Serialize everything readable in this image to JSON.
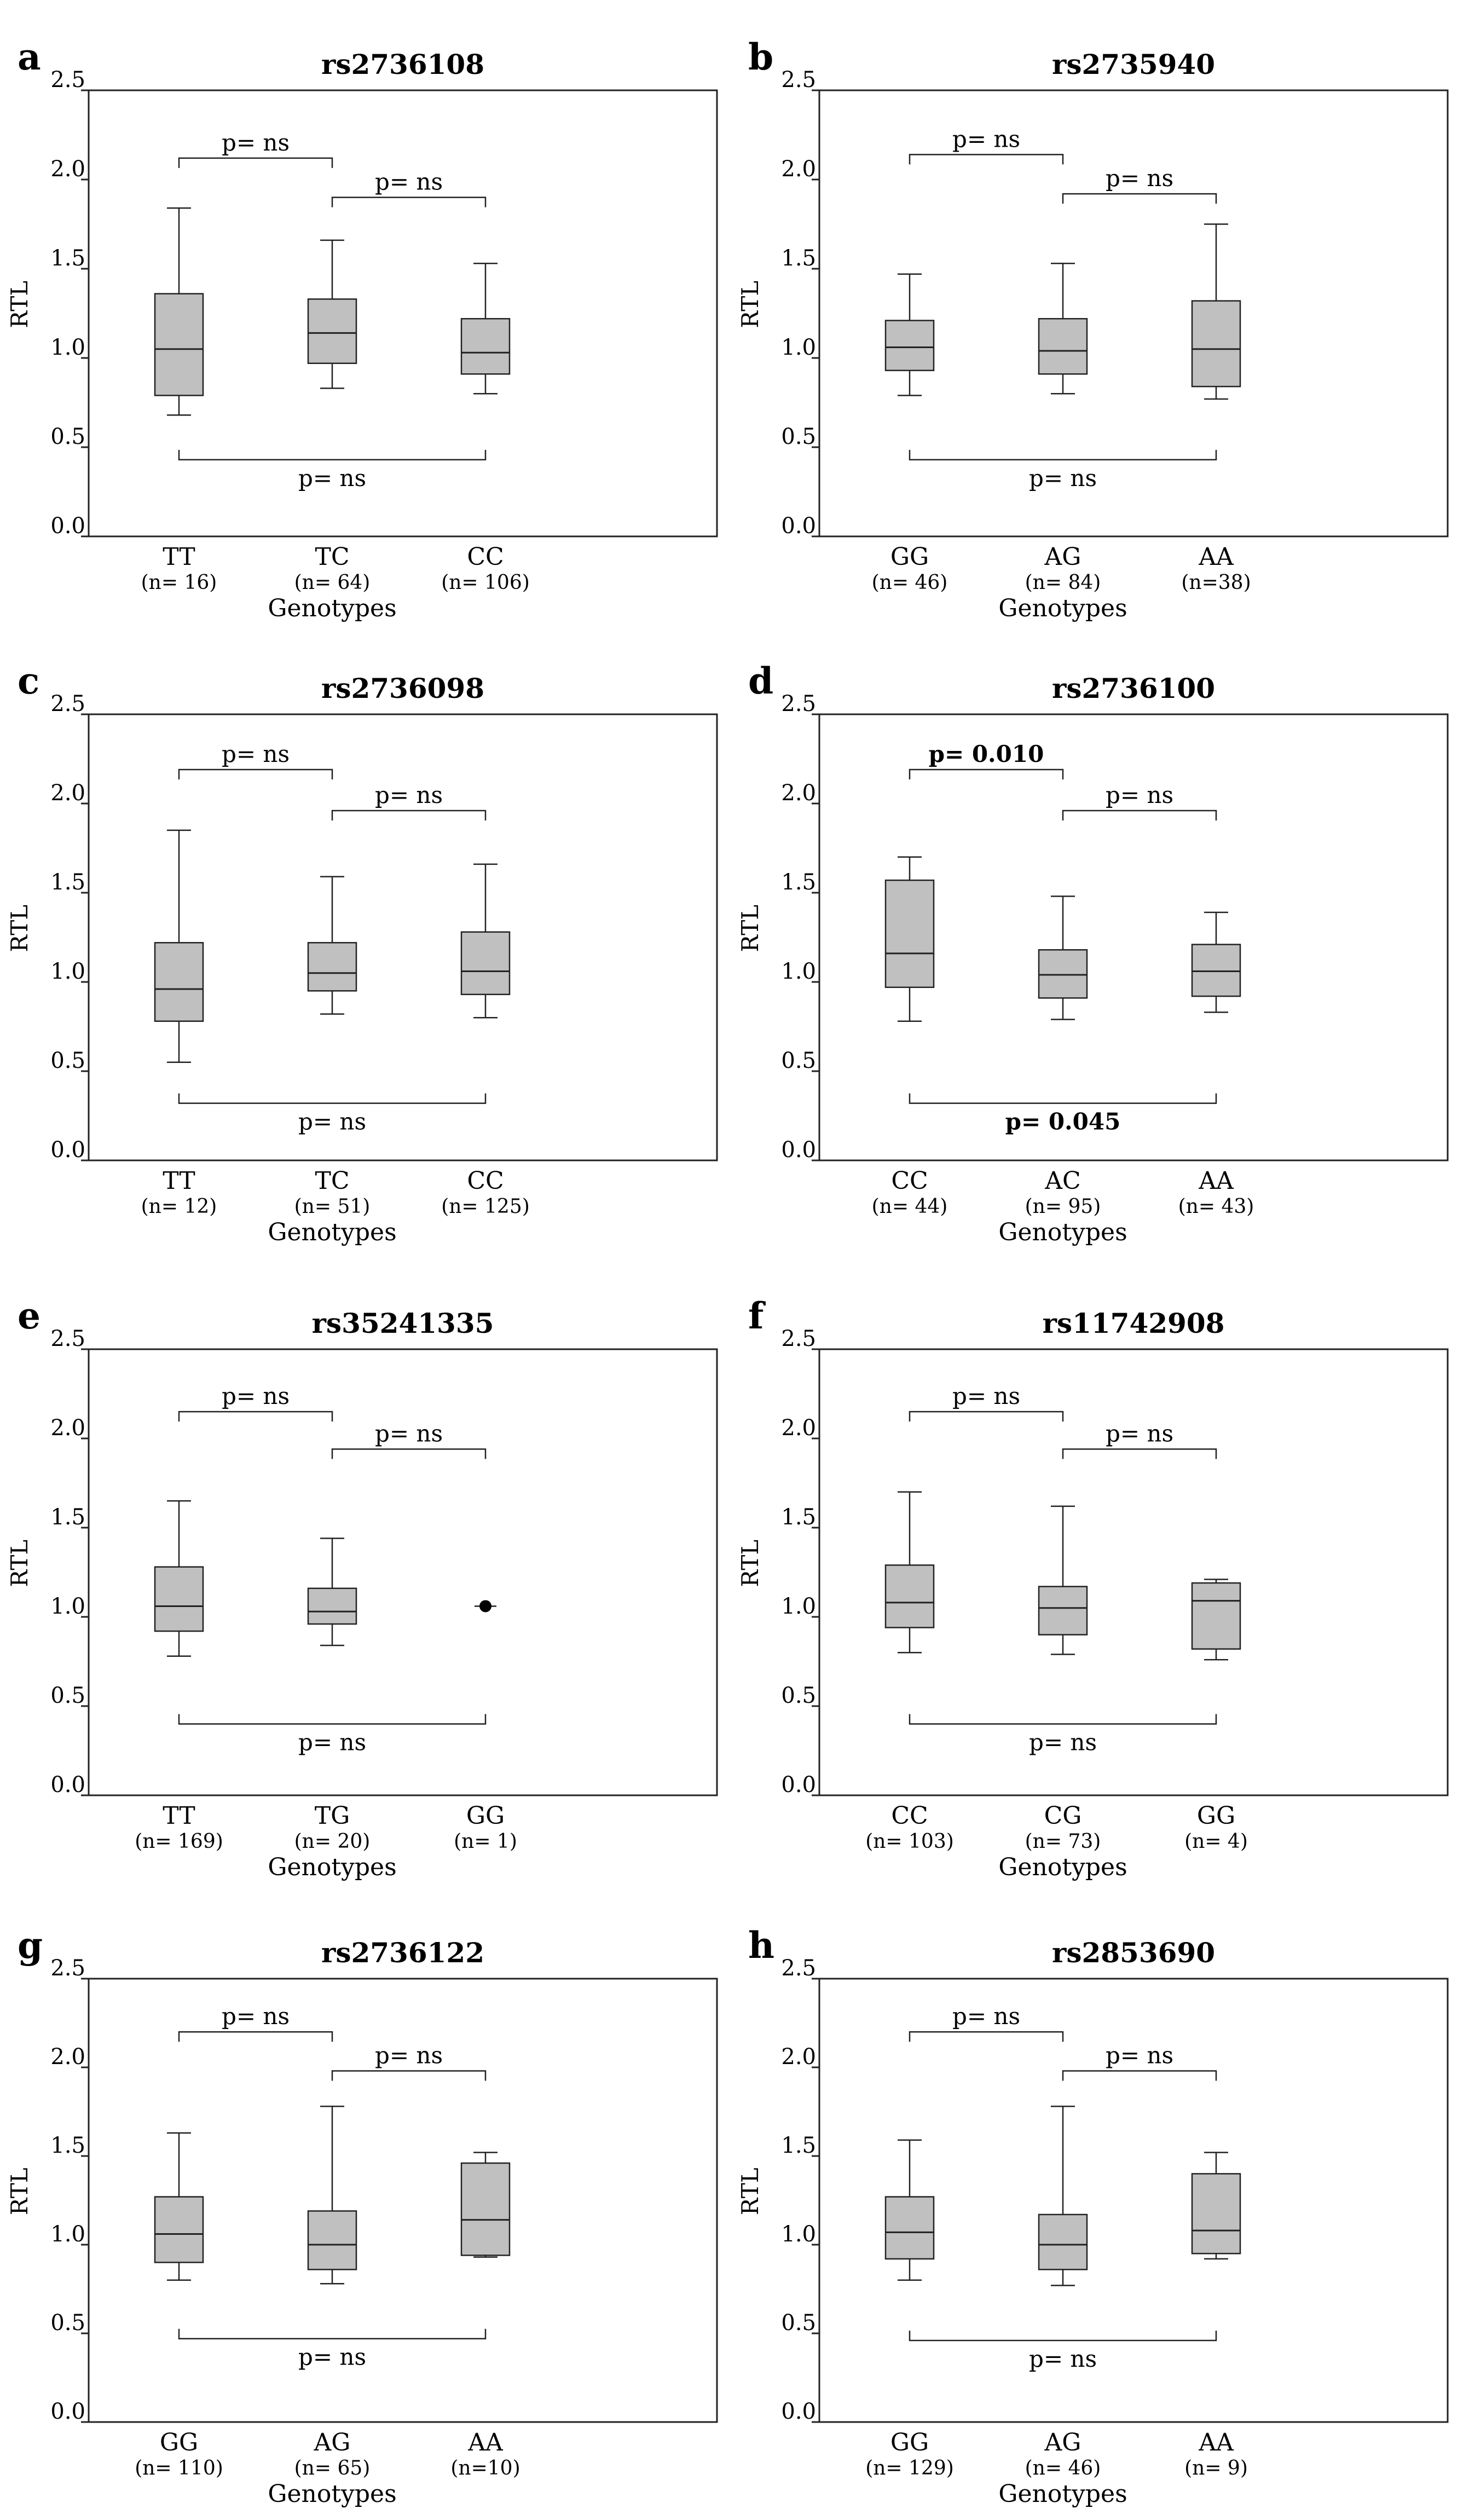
{
  "figure": {
    "y_label": "RTL",
    "x_label": "Genotypes",
    "axis_ticks": [
      "0.0",
      "0.5",
      "1.0",
      "1.5",
      "2.0",
      "2.5"
    ]
  },
  "chart_data": [
    {
      "type": "box",
      "panel_letter": "a",
      "title": "rs2736108",
      "xlabel": "Genotypes",
      "ylabel": "RTL",
      "ylim": [
        0,
        2.5
      ],
      "yticks": [
        0.0,
        0.5,
        1.0,
        1.5,
        2.0,
        2.5
      ],
      "categories": [
        "TT",
        "TC",
        "CC"
      ],
      "n_labels": [
        "(n= 16)",
        "(n= 64)",
        "(n= 106)"
      ],
      "boxes": [
        {
          "min": 0.68,
          "q1": 0.79,
          "median": 1.05,
          "q3": 1.36,
          "max": 1.84
        },
        {
          "min": 0.83,
          "q1": 0.97,
          "median": 1.14,
          "q3": 1.33,
          "max": 1.66
        },
        {
          "min": 0.8,
          "q1": 0.91,
          "median": 1.03,
          "q3": 1.22,
          "max": 1.53
        }
      ],
      "comparisons": [
        {
          "from": 0,
          "to": 1,
          "label": "p= ns",
          "bold": false,
          "level": 2.12,
          "label_pos": "above"
        },
        {
          "from": 1,
          "to": 2,
          "label": "p= ns",
          "bold": false,
          "level": 1.9,
          "label_pos": "above"
        },
        {
          "from": 0,
          "to": 2,
          "label": "p= ns",
          "bold": false,
          "level": 0.43,
          "label_pos": "below"
        }
      ]
    },
    {
      "type": "box",
      "panel_letter": "b",
      "title": "rs2735940",
      "xlabel": "Genotypes",
      "ylabel": "RTL",
      "ylim": [
        0,
        2.5
      ],
      "yticks": [
        0.0,
        0.5,
        1.0,
        1.5,
        2.0,
        2.5
      ],
      "categories": [
        "GG",
        "AG",
        "AA"
      ],
      "n_labels": [
        "(n= 46)",
        "(n= 84)",
        "(n=38)"
      ],
      "boxes": [
        {
          "min": 0.79,
          "q1": 0.93,
          "median": 1.06,
          "q3": 1.21,
          "max": 1.47
        },
        {
          "min": 0.8,
          "q1": 0.91,
          "median": 1.04,
          "q3": 1.22,
          "max": 1.53
        },
        {
          "min": 0.77,
          "q1": 0.84,
          "median": 1.05,
          "q3": 1.32,
          "max": 1.75
        }
      ],
      "comparisons": [
        {
          "from": 0,
          "to": 1,
          "label": "p= ns",
          "bold": false,
          "level": 2.14,
          "label_pos": "above"
        },
        {
          "from": 1,
          "to": 2,
          "label": "p= ns",
          "bold": false,
          "level": 1.92,
          "label_pos": "above"
        },
        {
          "from": 0,
          "to": 2,
          "label": "p= ns",
          "bold": false,
          "level": 0.43,
          "label_pos": "below"
        }
      ]
    },
    {
      "type": "box",
      "panel_letter": "c",
      "title": "rs2736098",
      "xlabel": "Genotypes",
      "ylabel": "RTL",
      "ylim": [
        0,
        2.5
      ],
      "yticks": [
        0.0,
        0.5,
        1.0,
        1.5,
        2.0,
        2.5
      ],
      "categories": [
        "TT",
        "TC",
        "CC"
      ],
      "n_labels": [
        "(n= 12)",
        "(n= 51)",
        "(n= 125)"
      ],
      "boxes": [
        {
          "min": 0.55,
          "q1": 0.78,
          "median": 0.96,
          "q3": 1.22,
          "max": 1.85
        },
        {
          "min": 0.82,
          "q1": 0.95,
          "median": 1.05,
          "q3": 1.22,
          "max": 1.59
        },
        {
          "min": 0.8,
          "q1": 0.93,
          "median": 1.06,
          "q3": 1.28,
          "max": 1.66
        }
      ],
      "comparisons": [
        {
          "from": 0,
          "to": 1,
          "label": "p= ns",
          "bold": false,
          "level": 2.19,
          "label_pos": "above"
        },
        {
          "from": 1,
          "to": 2,
          "label": "p= ns",
          "bold": false,
          "level": 1.96,
          "label_pos": "above"
        },
        {
          "from": 0,
          "to": 2,
          "label": "p= ns",
          "bold": false,
          "level": 0.32,
          "label_pos": "below"
        }
      ]
    },
    {
      "type": "box",
      "panel_letter": "d",
      "title": "rs2736100",
      "xlabel": "Genotypes",
      "ylabel": "RTL",
      "ylim": [
        0,
        2.5
      ],
      "yticks": [
        0.0,
        0.5,
        1.0,
        1.5,
        2.0,
        2.5
      ],
      "categories": [
        "CC",
        "AC",
        "AA"
      ],
      "n_labels": [
        "(n= 44)",
        "(n= 95)",
        "(n= 43)"
      ],
      "boxes": [
        {
          "min": 0.78,
          "q1": 0.97,
          "median": 1.16,
          "q3": 1.57,
          "max": 1.7
        },
        {
          "min": 0.79,
          "q1": 0.91,
          "median": 1.04,
          "q3": 1.18,
          "max": 1.48
        },
        {
          "min": 0.83,
          "q1": 0.92,
          "median": 1.06,
          "q3": 1.21,
          "max": 1.39
        }
      ],
      "comparisons": [
        {
          "from": 0,
          "to": 1,
          "label": "p= 0.010",
          "bold": true,
          "level": 2.19,
          "label_pos": "above"
        },
        {
          "from": 1,
          "to": 2,
          "label": "p= ns",
          "bold": false,
          "level": 1.96,
          "label_pos": "above"
        },
        {
          "from": 0,
          "to": 2,
          "label": "p= 0.045",
          "bold": true,
          "level": 0.32,
          "label_pos": "below"
        }
      ]
    },
    {
      "type": "box",
      "panel_letter": "e",
      "title": "rs35241335",
      "xlabel": "Genotypes",
      "ylabel": "RTL",
      "ylim": [
        0,
        2.5
      ],
      "yticks": [
        0.0,
        0.5,
        1.0,
        1.5,
        2.0,
        2.5
      ],
      "categories": [
        "TT",
        "TG",
        "GG"
      ],
      "n_labels": [
        "(n= 169)",
        "(n= 20)",
        "(n= 1)"
      ],
      "boxes": [
        {
          "min": 0.78,
          "q1": 0.92,
          "median": 1.06,
          "q3": 1.28,
          "max": 1.65
        },
        {
          "min": 0.84,
          "q1": 0.96,
          "median": 1.03,
          "q3": 1.16,
          "max": 1.44
        },
        {
          "point": 1.06
        }
      ],
      "comparisons": [
        {
          "from": 0,
          "to": 1,
          "label": "p= ns",
          "bold": false,
          "level": 2.15,
          "label_pos": "above"
        },
        {
          "from": 1,
          "to": 2,
          "label": "p= ns",
          "bold": false,
          "level": 1.94,
          "label_pos": "above"
        },
        {
          "from": 0,
          "to": 2,
          "label": "p= ns",
          "bold": false,
          "level": 0.4,
          "label_pos": "below"
        }
      ]
    },
    {
      "type": "box",
      "panel_letter": "f",
      "title": "rs11742908",
      "xlabel": "Genotypes",
      "ylabel": "RTL",
      "ylim": [
        0,
        2.5
      ],
      "yticks": [
        0.0,
        0.5,
        1.0,
        1.5,
        2.0,
        2.5
      ],
      "categories": [
        "CC",
        "CG",
        "GG"
      ],
      "n_labels": [
        "(n= 103)",
        "(n= 73)",
        "(n= 4)"
      ],
      "boxes": [
        {
          "min": 0.8,
          "q1": 0.94,
          "median": 1.08,
          "q3": 1.29,
          "max": 1.7
        },
        {
          "min": 0.79,
          "q1": 0.9,
          "median": 1.05,
          "q3": 1.17,
          "max": 1.62
        },
        {
          "min": 0.76,
          "q1": 0.82,
          "median": 1.09,
          "q3": 1.19,
          "max": 1.21
        }
      ],
      "comparisons": [
        {
          "from": 0,
          "to": 1,
          "label": "p= ns",
          "bold": false,
          "level": 2.15,
          "label_pos": "above"
        },
        {
          "from": 1,
          "to": 2,
          "label": "p= ns",
          "bold": false,
          "level": 1.94,
          "label_pos": "above"
        },
        {
          "from": 0,
          "to": 2,
          "label": "p= ns",
          "bold": false,
          "level": 0.4,
          "label_pos": "below"
        }
      ]
    },
    {
      "type": "box",
      "panel_letter": "g",
      "title": "rs2736122",
      "xlabel": "Genotypes",
      "ylabel": "RTL",
      "ylim": [
        0,
        2.5
      ],
      "yticks": [
        0.0,
        0.5,
        1.0,
        1.5,
        2.0,
        2.5
      ],
      "categories": [
        "GG",
        "AG",
        "AA"
      ],
      "n_labels": [
        "(n= 110)",
        "(n= 65)",
        "(n=10)"
      ],
      "boxes": [
        {
          "min": 0.8,
          "q1": 0.9,
          "median": 1.06,
          "q3": 1.27,
          "max": 1.63
        },
        {
          "min": 0.78,
          "q1": 0.86,
          "median": 1.0,
          "q3": 1.19,
          "max": 1.78
        },
        {
          "min": 0.93,
          "q1": 0.94,
          "median": 1.14,
          "q3": 1.46,
          "max": 1.52
        }
      ],
      "comparisons": [
        {
          "from": 0,
          "to": 1,
          "label": "p= ns",
          "bold": false,
          "level": 2.2,
          "label_pos": "above"
        },
        {
          "from": 1,
          "to": 2,
          "label": "p= ns",
          "bold": false,
          "level": 1.98,
          "label_pos": "above"
        },
        {
          "from": 0,
          "to": 2,
          "label": "p= ns",
          "bold": false,
          "level": 0.47,
          "label_pos": "below"
        }
      ]
    },
    {
      "type": "box",
      "panel_letter": "h",
      "title": "rs2853690",
      "xlabel": "Genotypes",
      "ylabel": "RTL",
      "ylim": [
        0,
        2.5
      ],
      "yticks": [
        0.0,
        0.5,
        1.0,
        1.5,
        2.0,
        2.5
      ],
      "categories": [
        "GG",
        "AG",
        "AA"
      ],
      "n_labels": [
        "(n= 129)",
        "(n= 46)",
        "(n= 9)"
      ],
      "boxes": [
        {
          "min": 0.8,
          "q1": 0.92,
          "median": 1.07,
          "q3": 1.27,
          "max": 1.59
        },
        {
          "min": 0.77,
          "q1": 0.86,
          "median": 1.0,
          "q3": 1.17,
          "max": 1.78
        },
        {
          "min": 0.92,
          "q1": 0.95,
          "median": 1.08,
          "q3": 1.4,
          "max": 1.52
        }
      ],
      "comparisons": [
        {
          "from": 0,
          "to": 1,
          "label": "p= ns",
          "bold": false,
          "level": 2.2,
          "label_pos": "above"
        },
        {
          "from": 1,
          "to": 2,
          "label": "p= ns",
          "bold": false,
          "level": 1.98,
          "label_pos": "above"
        },
        {
          "from": 0,
          "to": 2,
          "label": "p= ns",
          "bold": false,
          "level": 0.46,
          "label_pos": "below"
        }
      ]
    }
  ]
}
